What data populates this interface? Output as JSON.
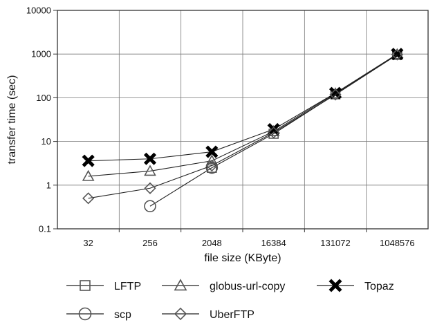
{
  "chart_data": {
    "type": "line",
    "title": "",
    "xlabel": "file size (KByte)",
    "ylabel": "transfer time (sec)",
    "x_scale": "categorical",
    "y_scale": "log",
    "ylim": [
      0.1,
      10000
    ],
    "grid": true,
    "legend_position": "bottom",
    "categories": [
      "32",
      "256",
      "2048",
      "16384",
      "131072",
      "1048576"
    ],
    "yticks": [
      "0.1",
      "1",
      "10",
      "100",
      "1000",
      "10000"
    ],
    "series": [
      {
        "name": "LFTP",
        "marker": "square",
        "values": [
          null,
          null,
          2.5,
          15,
          120,
          960
        ]
      },
      {
        "name": "globus-url-copy",
        "marker": "triangle",
        "values": [
          1.6,
          2.1,
          3.6,
          17,
          125,
          980
        ]
      },
      {
        "name": "Topaz",
        "marker": "x",
        "values": [
          3.6,
          4.0,
          5.8,
          19,
          128,
          1000
        ]
      },
      {
        "name": "scp",
        "marker": "circle",
        "values": [
          null,
          0.33,
          2.5,
          null,
          null,
          null
        ]
      },
      {
        "name": "UberFTP",
        "marker": "diamond",
        "values": [
          0.5,
          0.85,
          2.8,
          16,
          118,
          970
        ]
      }
    ],
    "colors": {
      "line": "#222222",
      "marker_outline": "#555555",
      "grid": "#777777"
    }
  }
}
